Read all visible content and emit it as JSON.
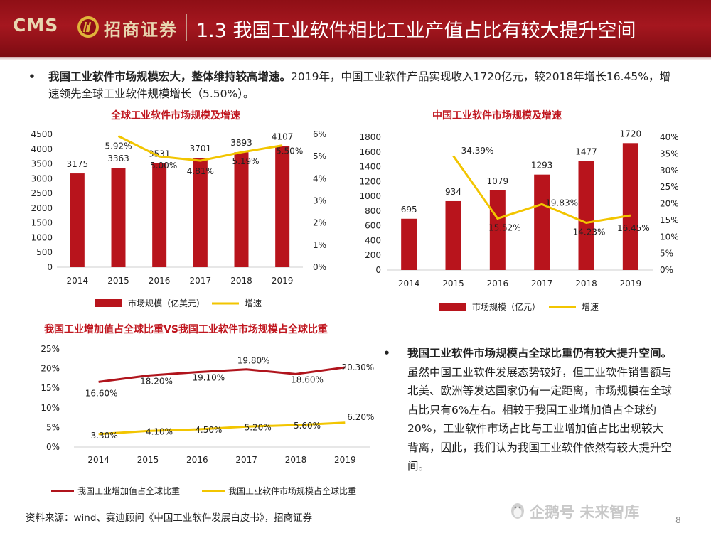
{
  "header": {
    "logo_cms": "CMS",
    "logo_text": "招商证券",
    "title": "1.3 我国工业软件相比工业产值占比有较大提升空间"
  },
  "bullet1": {
    "bold": "我国工业软件市场规模宏大，整体维持较高增速。",
    "text": "2019年，中国工业软件产品实现收入1720亿元，较2018年增长16.45%，增速领先全球工业软件规模增长（5.50%）。"
  },
  "bullet2": {
    "bold": "我国工业软件市场规模占全球比重仍有较大提升空间。",
    "text": "虽然中国工业软件发展态势较好，但工业软件销售额与北美、欧洲等发达国家仍有一定距离，市场规模在全球占比只有6%左右。相较于我国工业增加值占全球约20%，工业软件市场占比与工业增加值占比出现较大背离，因此，我们认为我国工业软件依然有较大提升空间。"
  },
  "source": "资料来源：wind、赛迪顾问《中国工业软件发展白皮书》，招商证券",
  "watermark": "企鹅号 未来智库",
  "page_number": "8",
  "colors": {
    "bar": "#b8141c",
    "line_yellow": "#f2c500",
    "line_red": "#b0141c",
    "title_red": "#c0161f"
  },
  "chart_data": [
    {
      "type": "bar",
      "title": "全球工业软件市场规模及增速",
      "categories": [
        "2014",
        "2015",
        "2016",
        "2017",
        "2018",
        "2019"
      ],
      "series": [
        {
          "name": "市场规模（亿美元）",
          "type": "bar",
          "axis": "left",
          "values": [
            3175,
            3363,
            3531,
            3701,
            3893,
            4107
          ],
          "labels": [
            "3175",
            "3363",
            "3531",
            "3701",
            "3893",
            "4107"
          ]
        },
        {
          "name": "增速",
          "type": "line",
          "axis": "right",
          "values": [
            null,
            5.92,
            5.0,
            4.81,
            5.19,
            5.5
          ],
          "labels": [
            "",
            "5.92%",
            "5.00%",
            "4.81%",
            "5.19%",
            "5.50%"
          ]
        }
      ],
      "y_left": {
        "min": 0,
        "max": 4500,
        "step": 500,
        "ticks": [
          "0",
          "500",
          "1000",
          "1500",
          "2000",
          "2500",
          "3000",
          "3500",
          "4000",
          "4500"
        ]
      },
      "y_right": {
        "min": 0,
        "max": 6,
        "step": 1,
        "ticks": [
          "0%",
          "1%",
          "2%",
          "3%",
          "4%",
          "5%",
          "6%"
        ]
      },
      "legend": [
        "市场规模（亿美元）",
        "增速"
      ]
    },
    {
      "type": "bar",
      "title": "中国工业软件市场规模及增速",
      "categories": [
        "2014",
        "2015",
        "2016",
        "2017",
        "2018",
        "2019"
      ],
      "series": [
        {
          "name": "市场规模（亿元）",
          "type": "bar",
          "axis": "left",
          "values": [
            695,
            934,
            1079,
            1293,
            1477,
            1720
          ],
          "labels": [
            "695",
            "934",
            "1079",
            "1293",
            "1477",
            "1720"
          ]
        },
        {
          "name": "增速",
          "type": "line",
          "axis": "right",
          "values": [
            null,
            34.39,
            15.52,
            19.83,
            14.23,
            16.45
          ],
          "labels": [
            "",
            "34.39%",
            "15.52%",
            "19.83%",
            "14.23%",
            "16.45%"
          ]
        }
      ],
      "y_left": {
        "min": 0,
        "max": 1800,
        "step": 200,
        "ticks": [
          "0",
          "200",
          "400",
          "600",
          "800",
          "1000",
          "1200",
          "1400",
          "1600",
          "1800"
        ]
      },
      "y_right": {
        "min": 0,
        "max": 40,
        "step": 5,
        "ticks": [
          "0%",
          "5%",
          "10%",
          "15%",
          "20%",
          "25%",
          "30%",
          "35%",
          "40%"
        ]
      },
      "legend": [
        "市场规模（亿元）",
        "增速"
      ]
    },
    {
      "type": "line",
      "title": "我国工业增加值占全球比重VS我国工业软件市场规模占全球比重",
      "categories": [
        "2014",
        "2015",
        "2016",
        "2017",
        "2018",
        "2019"
      ],
      "series": [
        {
          "name": "我国工业增加值占全球比重",
          "values": [
            16.6,
            18.2,
            19.1,
            19.8,
            18.6,
            20.3
          ],
          "labels": [
            "16.60%",
            "18.20%",
            "19.10%",
            "19.80%",
            "18.60%",
            "20.30%"
          ]
        },
        {
          "name": "我国工业软件市场规模占全球比重",
          "values": [
            3.3,
            4.1,
            4.5,
            5.2,
            5.6,
            6.2
          ],
          "labels": [
            "3.30%",
            "4.10%",
            "4.50%",
            "5.20%",
            "5.60%",
            "6.20%"
          ]
        }
      ],
      "y": {
        "min": 0,
        "max": 25,
        "step": 5,
        "ticks": [
          "0%",
          "5%",
          "10%",
          "15%",
          "20%",
          "25%"
        ]
      },
      "legend": [
        "我国工业增加值占全球比重",
        "我国工业软件市场规模占全球比重"
      ]
    }
  ]
}
